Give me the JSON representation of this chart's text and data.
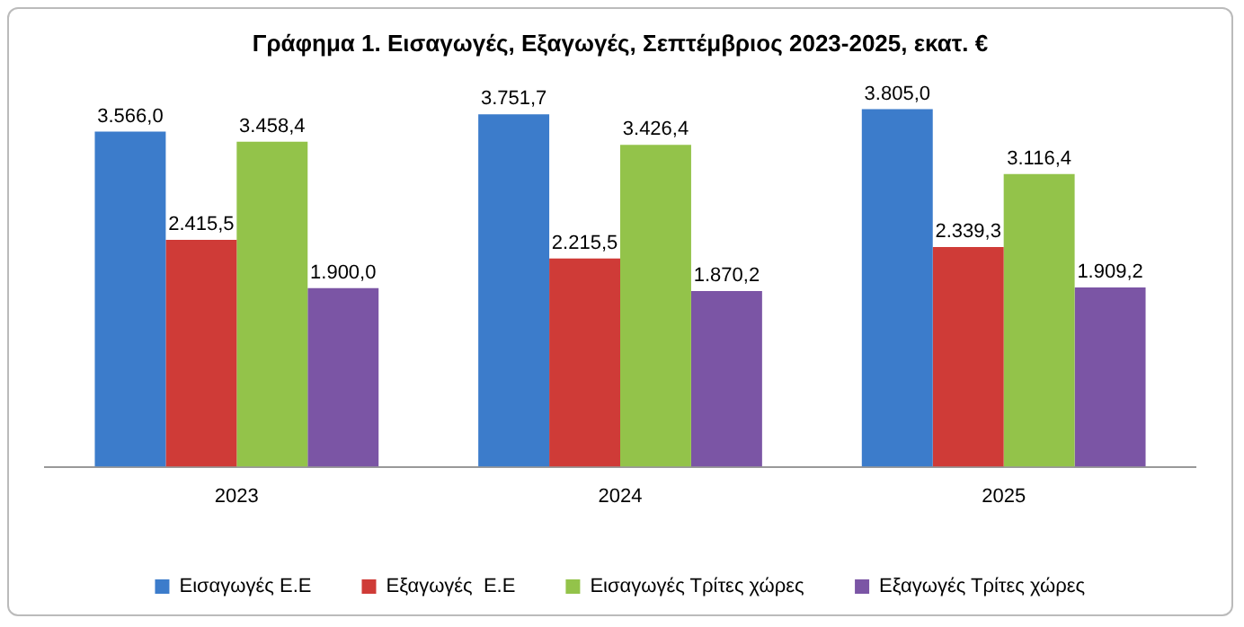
{
  "chart_data": {
    "type": "bar",
    "title": "Γράφημα 1. Εισαγωγές, Εξαγωγές, Σεπτέμβριος 2023-2025, εκατ. €",
    "categories": [
      "2023",
      "2024",
      "2025"
    ],
    "legend": "bottom",
    "grid": false,
    "tick_labels": "x",
    "series": [
      {
        "name": "Εισαγωγές Ε.Ε",
        "color": "#3c7ccb",
        "values": [
          3566.0,
          3751.7,
          3805.0
        ],
        "value_labels": [
          "3.566,0",
          "3.751,7",
          "3.805,0"
        ]
      },
      {
        "name": "Εξαγωγές  Ε.Ε",
        "color": "#cf3b37",
        "values": [
          2415.5,
          2215.5,
          2339.3
        ],
        "value_labels": [
          "2.415,5",
          "2.215,5",
          "2.339,3"
        ]
      },
      {
        "name": "Εισαγωγές Τρίτες χώρες",
        "color": "#93c34a",
        "values": [
          3458.4,
          3426.4,
          3116.4
        ],
        "value_labels": [
          "3.458,4",
          "3.426,4",
          "3.116,4"
        ]
      },
      {
        "name": "Εξαγωγές Τρίτες χώρες",
        "color": "#7b55a5",
        "values": [
          1900.0,
          1870.2,
          1909.2
        ],
        "value_labels": [
          "1.900,0",
          "1.870,2",
          "1.909,2"
        ]
      }
    ]
  }
}
